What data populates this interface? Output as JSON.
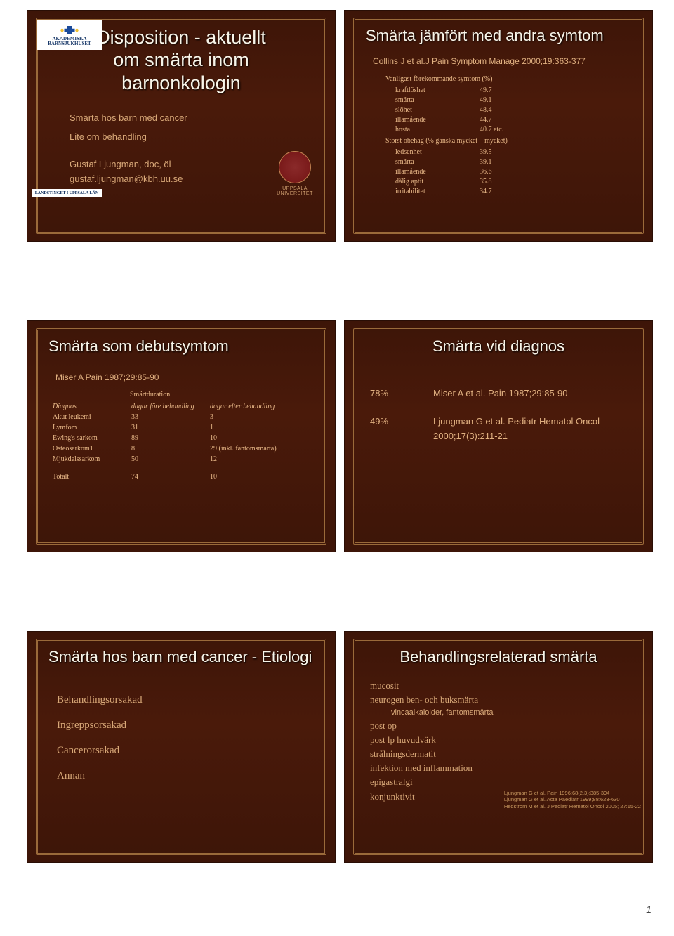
{
  "page_number": "1",
  "slide1": {
    "title_l1": "Disposition - aktuellt",
    "title_l2": "om smärta inom",
    "title_l3": "barnonkologin",
    "bullet1": "Smärta hos barn med cancer",
    "bullet2": "Lite om behandling",
    "author": "Gustaf Ljungman, doc, öl",
    "email": "gustaf.ljungman@kbh.uu.se",
    "logo_top_l1": "AKADEMISKA",
    "logo_top_l2": "BARNSJUKHUSET",
    "logo_bottom": "LANDSTINGET I UPPSALA LÄN",
    "uu_l1": "UPPSALA",
    "uu_l2": "UNIVERSITET"
  },
  "slide2": {
    "title": "Smärta jämfört med andra symtom",
    "ref": "Collins J et al.J Pain Symptom Manage 2000;19:363-377",
    "hdr1": "Vanligast förekommande symtom (%)",
    "rows1": [
      [
        "kraftlöshet",
        "49.7"
      ],
      [
        "smärta",
        "49.1"
      ],
      [
        "slöhet",
        "48.4"
      ],
      [
        "illamående",
        "44.7"
      ],
      [
        "hosta",
        "40.7  etc."
      ]
    ],
    "hdr2": "Störst obehag (% ganska mycket – mycket)",
    "rows2": [
      [
        "ledsenhet",
        "39.5"
      ],
      [
        "smärta",
        "39.1"
      ],
      [
        "illamående",
        "36.6"
      ],
      [
        "dålig aptit",
        "35.8"
      ],
      [
        "irritabilitet",
        "34.7"
      ]
    ]
  },
  "slide3": {
    "title": "Smärta som debutsymtom",
    "ref": "Miser A   Pain 1987;29:85-90",
    "dur_hdr": "Smärtduration",
    "col1": "Diagnos",
    "col2": "dagar före behandling",
    "col3": "dagar efter behandling",
    "rows": [
      [
        "Akut leukemi",
        "33",
        "3"
      ],
      [
        "Lymfom",
        "31",
        "1"
      ],
      [
        "Ewing's sarkom",
        "89",
        "10"
      ],
      [
        "Osteosarkom1",
        "8",
        "29 (inkl. fantomsmärta)"
      ],
      [
        "Mjukdelssarkom",
        "50",
        "12"
      ]
    ],
    "tot_l": "Totalt",
    "tot_a": "74",
    "tot_b": "10"
  },
  "slide4": {
    "title": "Smärta vid diagnos",
    "p1a": "78%",
    "p1b": "Miser A et al. Pain 1987;29:85-90",
    "p2a": "49%",
    "p2b": "Ljungman G et al. Pediatr Hematol Oncol 2000;17(3):211-21"
  },
  "slide5": {
    "title": "Smärta hos barn med cancer - Etiologi",
    "items": [
      "Behandlingsorsakad",
      "Ingreppsorsakad",
      "Cancerorsakad",
      "Annan"
    ]
  },
  "slide6": {
    "title": "Behandlingsrelaterad smärta",
    "l1": "mucosit",
    "l2": "neurogen ben- och buksmärta",
    "l2sub": "vincaalkaloider, fantomsmärta",
    "l3": "post op",
    "l4": "post lp huvudvärk",
    "l5": "strålningsdermatit",
    "l6": "infektion med inflammation",
    "l7": "epigastralgi",
    "l8": "konjunktivit",
    "r1": "Ljungman G et al. Pain 1996;68(2,3):385-394",
    "r2": "Ljungman G et al. Acta Paediatr 1999;88:623-630",
    "r3": "Hedström M et al. J Pediatr Hematol Oncol 2005; 27:15-22"
  },
  "colors": {
    "slide_bg": "#4a1a0a",
    "border": "#9a6a3a",
    "title_text": "#f8f4e8",
    "body_text": "#d8a878",
    "accent_text": "#e0b080"
  }
}
